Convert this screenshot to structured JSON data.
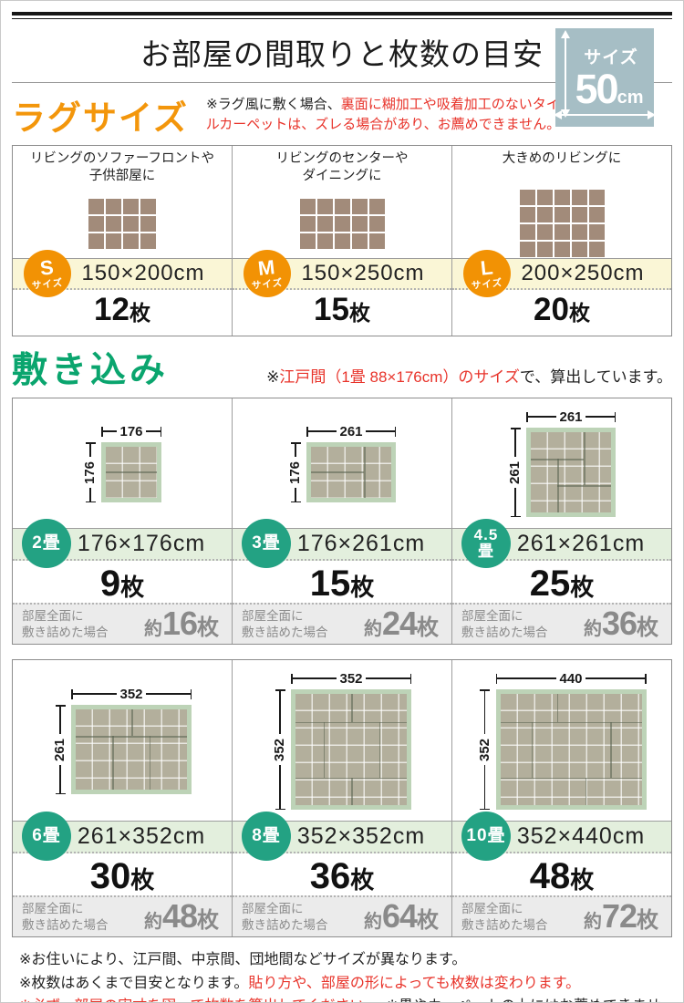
{
  "header": {
    "title": "お部屋の間取りと枚数の目安",
    "badge": {
      "label": "サイズ",
      "number": "50",
      "unit": "cm"
    }
  },
  "rug": {
    "heading": "ラグサイズ",
    "note": [
      {
        "t": "※ラグ風に敷く場合、",
        "c": "k"
      },
      {
        "t": "裏面に糊加工や吸着加工のないタイルカーペットは、ズレる場合があり、お薦めできません。",
        "c": "r"
      }
    ],
    "items": [
      {
        "badge_letter": "S",
        "badge_sub": "サイズ",
        "desc": "リビングのソファーフロントや\n子供部屋に",
        "size": "150×200cm",
        "count": "12",
        "unit": "枚",
        "cols": 4,
        "rows": 3
      },
      {
        "badge_letter": "M",
        "badge_sub": "サイズ",
        "desc": "リビングのセンターや\nダイニングに",
        "size": "150×250cm",
        "count": "15",
        "unit": "枚",
        "cols": 5,
        "rows": 3
      },
      {
        "badge_letter": "L",
        "badge_sub": "サイズ",
        "desc": "大きめのリビングに",
        "size": "200×250cm",
        "count": "20",
        "unit": "枚",
        "cols": 5,
        "rows": 4
      }
    ]
  },
  "fit": {
    "heading": "敷き込み",
    "note": [
      {
        "t": "※",
        "c": "k"
      },
      {
        "t": "江戸間（1畳 88×176cm）のサイズ",
        "c": "r"
      },
      {
        "t": "で、算出しています。",
        "c": "k"
      }
    ],
    "full_label": "部屋全面に\n敷き詰めた場合",
    "approx": "約",
    "unit": "枚",
    "rows": [
      [
        {
          "badge": "2畳",
          "dim_top": "176",
          "dim_left": "176",
          "size": "176×176cm",
          "count": "9",
          "full": "16",
          "mats": "p2"
        },
        {
          "badge": "3畳",
          "dim_top": "261",
          "dim_left": "176",
          "size": "176×261cm",
          "count": "15",
          "full": "24",
          "mats": "p3"
        },
        {
          "badge": "4.5\n畳",
          "dim_top": "261",
          "dim_left": "261",
          "size": "261×261cm",
          "count": "25",
          "full": "36",
          "mats": "p45"
        }
      ],
      [
        {
          "badge": "6畳",
          "dim_top": "352",
          "dim_left": "261",
          "size": "261×352cm",
          "count": "30",
          "full": "48",
          "mats": "p6"
        },
        {
          "badge": "8畳",
          "dim_top": "352",
          "dim_left": "352",
          "size": "352×352cm",
          "count": "36",
          "full": "64",
          "mats": "p8"
        },
        {
          "badge": "10畳",
          "dim_top": "440",
          "dim_left": "352",
          "size": "352×440cm",
          "count": "48",
          "full": "72",
          "mats": "p10"
        }
      ]
    ]
  },
  "footer": {
    "notes": [
      [
        {
          "t": "※お住いにより、江戸間、中京間、団地間などサイズが異なります。",
          "c": "k"
        }
      ],
      [
        {
          "t": "※枚数はあくまで目安となります。",
          "c": "k"
        },
        {
          "t": "貼り方や、部屋の形によっても枚数は変わります。",
          "c": "r"
        }
      ],
      [
        {
          "t": "※必ず、部屋の実寸を図って枚数を算出してください。",
          "c": "r"
        },
        {
          "t": "　※畳やカーペットの上にはお薦めできません。",
          "c": "k"
        }
      ]
    ]
  },
  "colors": {
    "accent_orange": "#f29204",
    "heading_orange": "#f3960b",
    "heading_green": "#0aa56e",
    "circle_teal": "#23a283",
    "red_text": "#e8332a",
    "badge_bg": "#a6bec5",
    "rug_tile": "#a28b7a",
    "room_border": "#bdd3b7",
    "room_tile": "#b3af9c",
    "band_yellow": "#faf6d6",
    "band_green": "#e3efdd",
    "band_gray": "#ebebeb"
  }
}
